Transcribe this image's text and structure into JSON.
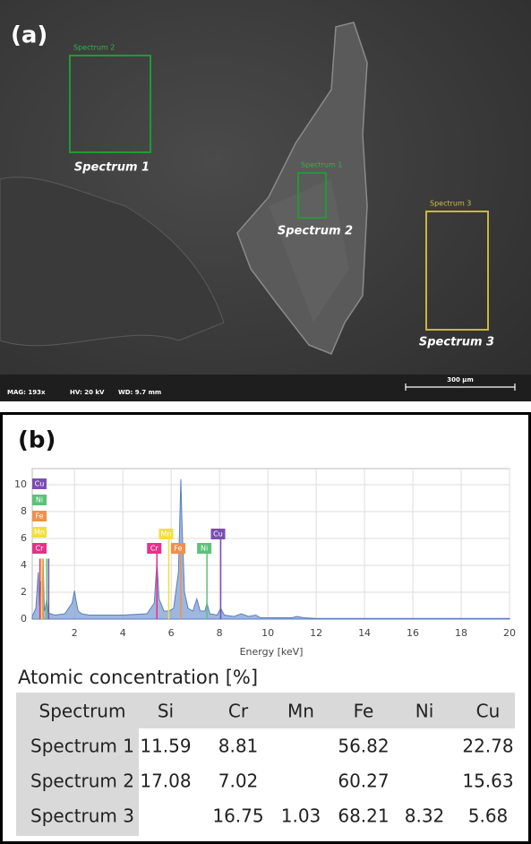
{
  "panel_a": {
    "label": "(a)",
    "regions": [
      {
        "tag": "Spectrum 2",
        "caption": "Spectrum 1"
      },
      {
        "tag": "Spectrum 1",
        "caption": "Spectrum 2"
      },
      {
        "tag": "Spectrum 3",
        "caption": "Spectrum 3"
      }
    ],
    "info_bar": {
      "mag": "MAG: 193x",
      "hv": "HV: 20 kV",
      "wd": "WD: 9.7 mm",
      "scale": "300 µm"
    }
  },
  "panel_b": {
    "label": "(b)"
  },
  "chart_data": {
    "type": "area",
    "xlabel": "Energy [keV]",
    "color": "#7f9fd2",
    "x": [
      0.25,
      0.4,
      0.5,
      0.55,
      0.6,
      0.65,
      0.7,
      0.75,
      0.8,
      0.85,
      0.9,
      1.0,
      1.2,
      1.6,
      1.9,
      2.0,
      2.05,
      2.15,
      2.3,
      2.6,
      3.0,
      4.0,
      5.0,
      5.3,
      5.41,
      5.5,
      5.7,
      5.9,
      6.1,
      6.3,
      6.4,
      6.45,
      6.55,
      6.7,
      6.9,
      7.06,
      7.2,
      7.4,
      7.48,
      7.6,
      7.9,
      8.05,
      8.2,
      8.6,
      8.9,
      9.2,
      9.5,
      9.7,
      10.5,
      11.0,
      11.2,
      11.5,
      12,
      14,
      16,
      18,
      20
    ],
    "values": [
      0.2,
      0.8,
      3.5,
      1.0,
      2.8,
      1.2,
      4.5,
      0.6,
      0.9,
      1.5,
      0.5,
      0.4,
      0.3,
      0.4,
      1.2,
      2.1,
      1.5,
      0.6,
      0.4,
      0.3,
      0.3,
      0.3,
      0.4,
      1.2,
      4.3,
      1.5,
      0.6,
      0.6,
      0.8,
      3.5,
      10.4,
      7.0,
      2.0,
      0.8,
      0.6,
      1.5,
      0.6,
      0.6,
      1.2,
      0.4,
      0.3,
      0.8,
      0.3,
      0.2,
      0.4,
      0.2,
      0.3,
      0.1,
      0.1,
      0.1,
      0.2,
      0.1,
      0.05,
      0.05,
      0.05,
      0.05,
      0.05
    ],
    "markers": [
      {
        "label": "Cr",
        "x": 0.57,
        "color": "#e8308a"
      },
      {
        "label": "Mn",
        "x": 0.64,
        "color": "#f2e03a"
      },
      {
        "label": "Fe",
        "x": 0.7,
        "color": "#f0904a"
      },
      {
        "label": "Ni",
        "x": 0.85,
        "color": "#5cc27a"
      },
      {
        "label": "Cu",
        "x": 0.93,
        "color": "#7b4fb0"
      },
      {
        "label": "Cr",
        "x": 5.41,
        "color": "#e8308a"
      },
      {
        "label": "Mn",
        "x": 5.9,
        "color": "#f2e03a"
      },
      {
        "label": "Fe",
        "x": 6.4,
        "color": "#f0904a"
      },
      {
        "label": "Ni",
        "x": 7.48,
        "color": "#5cc27a"
      },
      {
        "label": "Cu",
        "x": 8.05,
        "color": "#7b4fb0"
      }
    ],
    "xlim": [
      0.25,
      20
    ],
    "xticks": [
      2,
      4,
      6,
      8,
      10,
      12,
      14,
      16,
      18,
      20
    ],
    "ylim": [
      0,
      11.2
    ],
    "yticks": [
      0,
      2,
      4,
      6,
      8,
      10
    ],
    "grid": true
  },
  "table": {
    "title": "Atomic concentration [%]",
    "header": [
      "Spectrum",
      "Si",
      "Cr",
      "Mn",
      "Fe",
      "Ni",
      "Cu"
    ],
    "rows": [
      [
        "Spectrum 1",
        11.59,
        8.81,
        null,
        56.82,
        null,
        22.78
      ],
      [
        "Spectrum 2",
        17.08,
        7.02,
        null,
        60.27,
        null,
        15.63
      ],
      [
        "Spectrum 3",
        null,
        16.75,
        1.03,
        68.21,
        8.32,
        5.68
      ]
    ]
  }
}
